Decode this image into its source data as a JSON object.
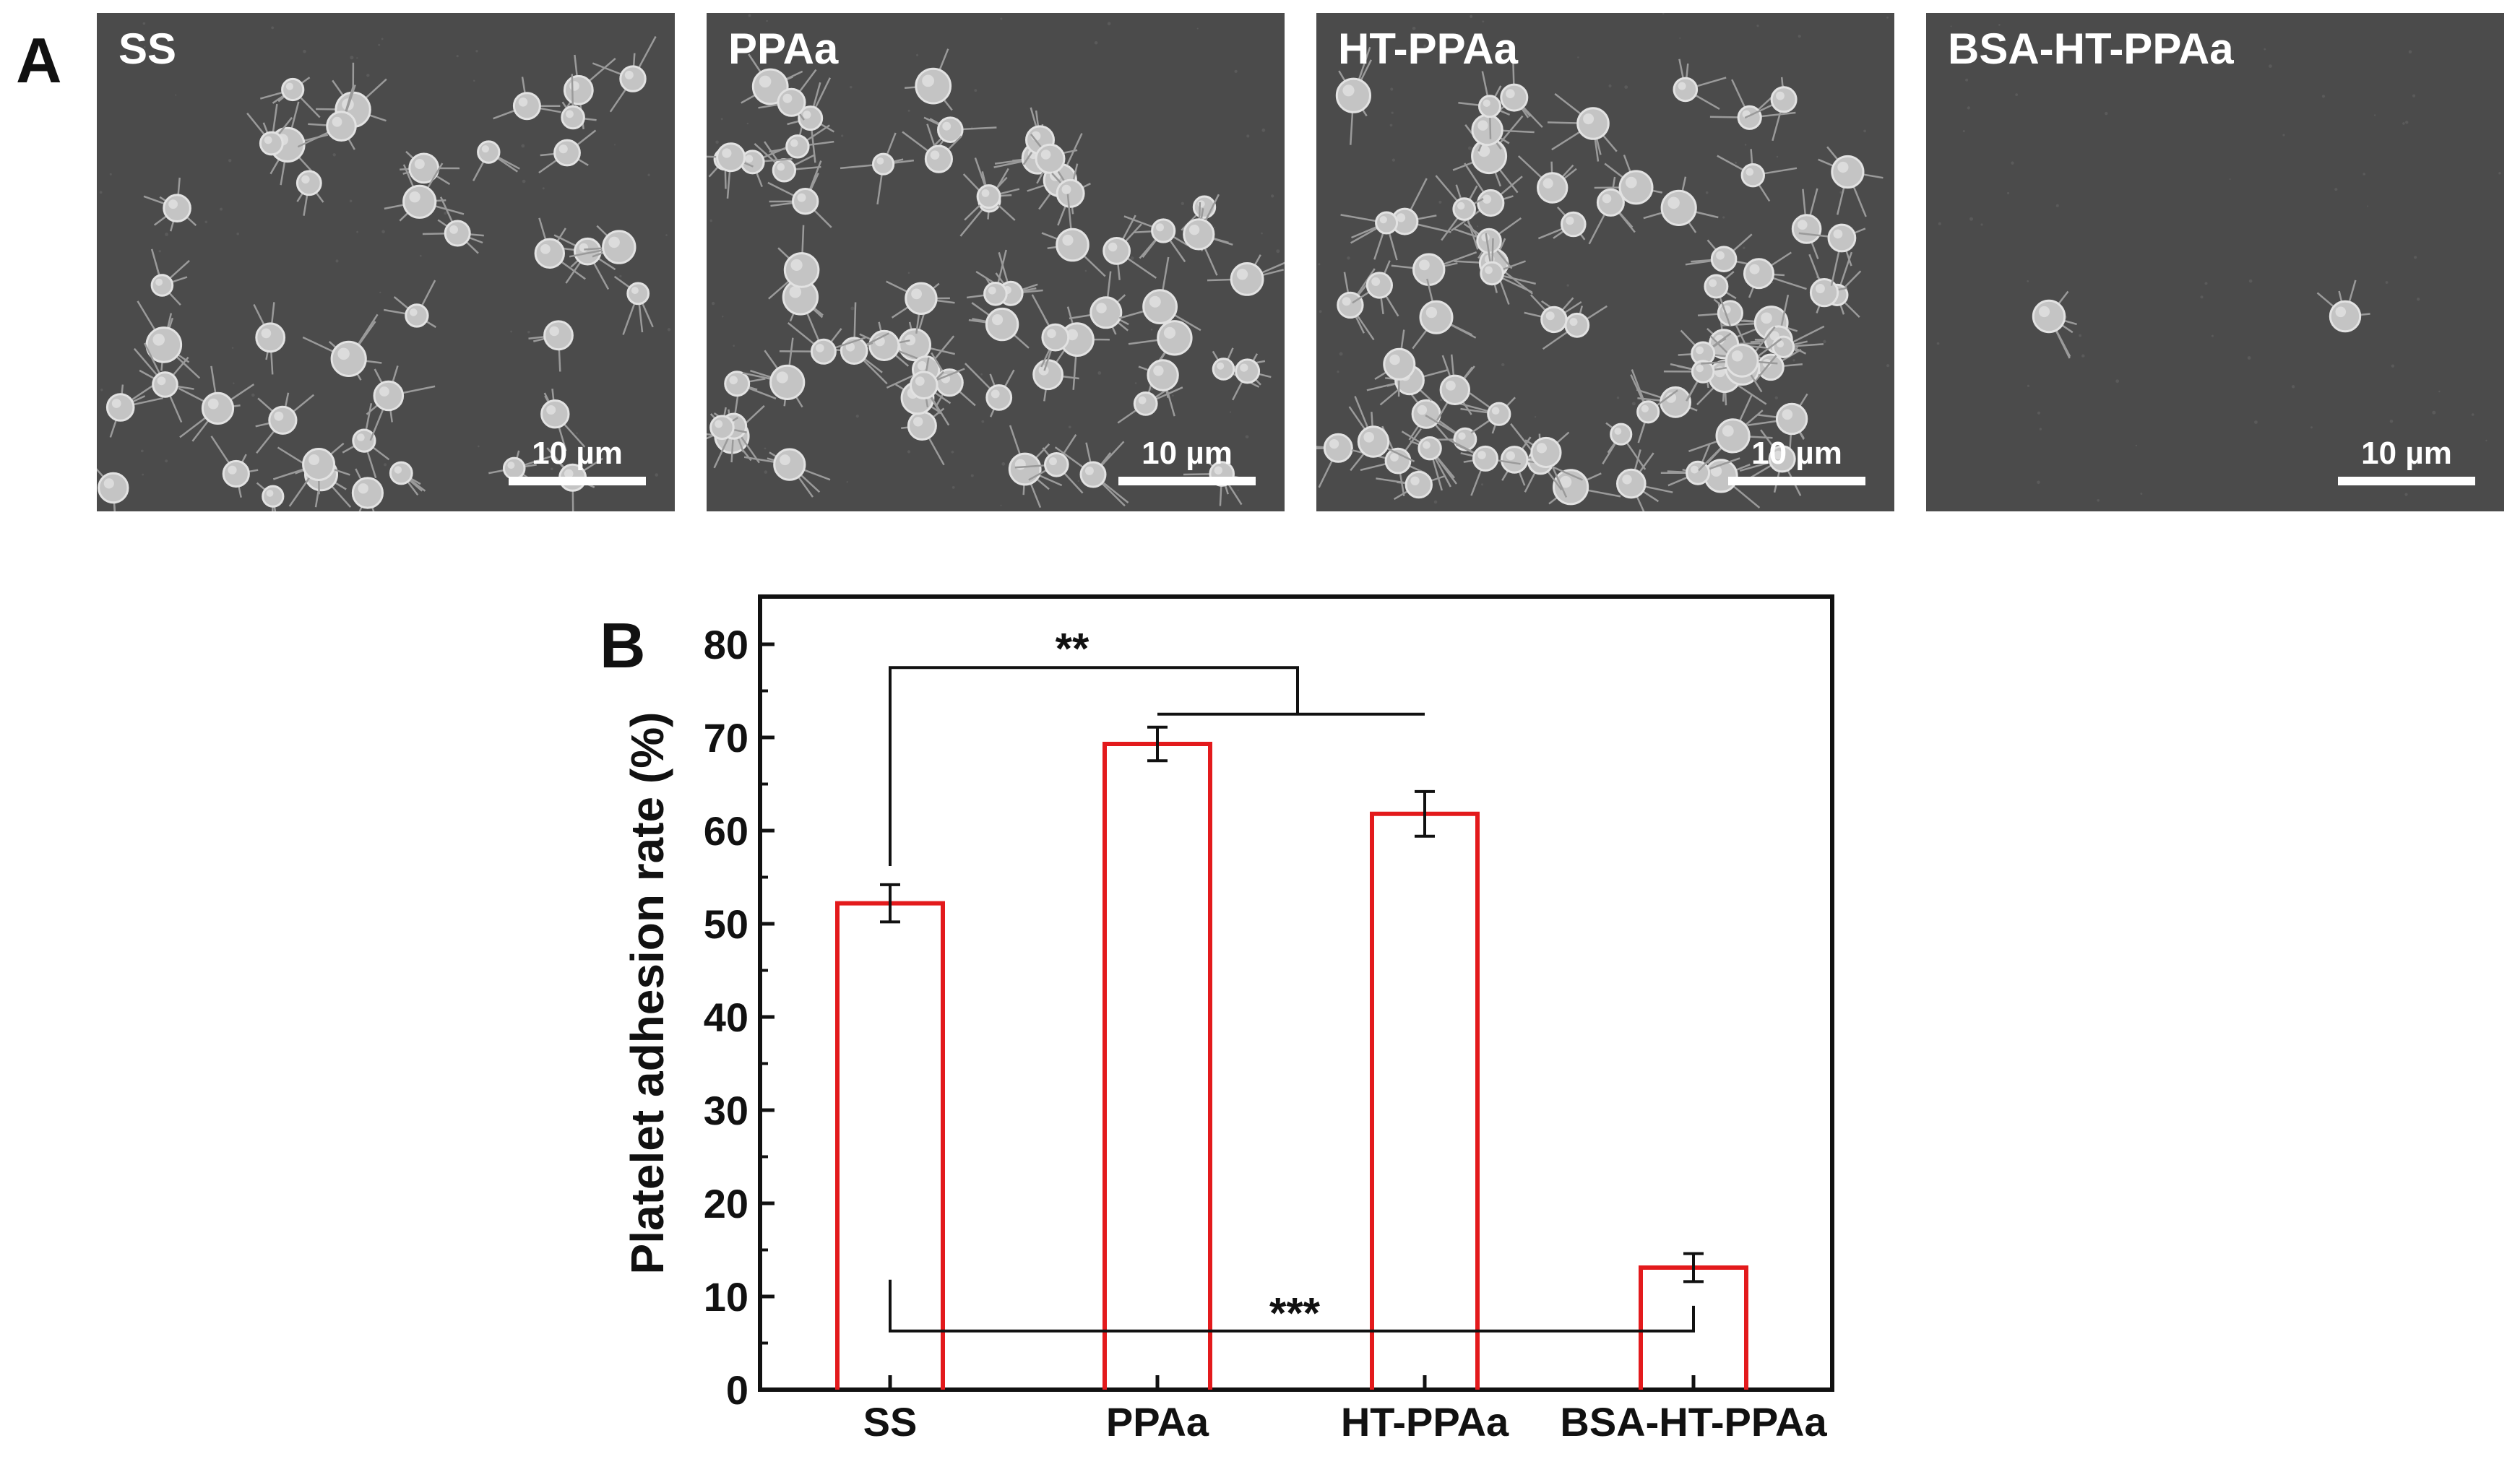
{
  "panel_a": {
    "letter": "A",
    "images": [
      {
        "label": "SS",
        "scale": "10 µm"
      },
      {
        "label": "PPAa",
        "scale": "10 µm"
      },
      {
        "label": "HT-PPAa",
        "scale": "10 µm"
      },
      {
        "label": "BSA-HT-PPAa",
        "scale": "10 µm"
      }
    ]
  },
  "panel_b": {
    "letter": "B"
  },
  "chart_data": {
    "type": "bar",
    "categories": [
      "SS",
      "PPAa",
      "HT-PPAa",
      "BSA-HT-PPAa"
    ],
    "values": [
      52.2,
      69.3,
      61.8,
      13.1
    ],
    "errors": [
      2.0,
      1.8,
      2.4,
      1.5
    ],
    "xlabel": "",
    "ylabel": "Platelet adhesion rate (%)",
    "ylim": [
      0,
      80
    ],
    "yticks": [
      0,
      10,
      20,
      30,
      40,
      50,
      60,
      70,
      80
    ],
    "bar_style": "hollow",
    "bar_color": "#e31a1c",
    "significance": [
      {
        "label": "**",
        "groups": [
          "SS",
          "PPAa/HT-PPAa"
        ]
      },
      {
        "label": "***",
        "groups": [
          "SS",
          "BSA-HT-PPAa"
        ]
      }
    ],
    "grid": false
  }
}
